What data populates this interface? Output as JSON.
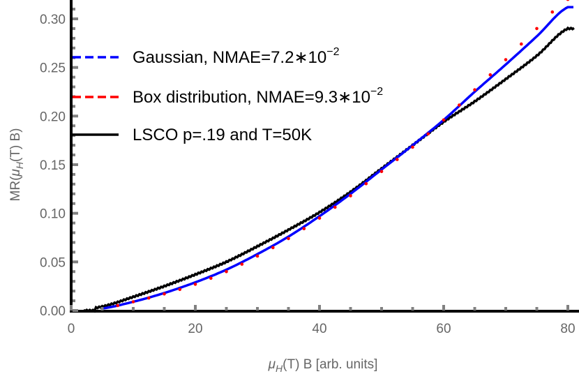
{
  "chart_data": {
    "type": "line",
    "title": "",
    "xlabel": "μH(T) B [arb. units]",
    "ylabel": "MR(μH(T) B)",
    "xlim": [
      0,
      81
    ],
    "ylim": [
      0,
      0.32
    ],
    "xticks": [
      0,
      20,
      40,
      60,
      80
    ],
    "yticks": [
      0.0,
      0.05,
      0.1,
      0.15,
      0.2,
      0.25,
      0.3
    ],
    "xtick_labels": [
      "0",
      "20",
      "40",
      "60",
      "80"
    ],
    "ytick_labels": [
      "0.00",
      "0.05",
      "0.10",
      "0.15",
      "0.20",
      "0.25",
      "0.30"
    ],
    "grid": false,
    "legend_position": "upper left",
    "x": [
      0,
      5,
      10,
      15,
      20,
      25,
      30,
      35,
      40,
      45,
      50,
      55,
      60,
      65,
      70,
      75,
      80
    ],
    "series": [
      {
        "name": "Gaussian, NMAE=7.2*10^-2",
        "style": "dashed",
        "color": "#0000ff",
        "values": [
          0.0,
          0.002,
          0.009,
          0.018,
          0.029,
          0.042,
          0.058,
          0.076,
          0.097,
          0.12,
          0.145,
          0.17,
          0.196,
          0.225,
          0.253,
          0.282,
          0.312
        ]
      },
      {
        "name": "Box distribution, NMAE=9.3*10^-2",
        "style": "dashed",
        "color": "#ff0000",
        "values": [
          0.0,
          0.002,
          0.009,
          0.017,
          0.027,
          0.04,
          0.056,
          0.074,
          0.095,
          0.118,
          0.143,
          0.168,
          0.196,
          0.227,
          0.258,
          0.29,
          0.32
        ]
      },
      {
        "name": "LSCO p=.19 and T=50K",
        "style": "solid",
        "color": "#000000",
        "values": [
          0.0,
          0.004,
          0.014,
          0.025,
          0.037,
          0.05,
          0.066,
          0.083,
          0.101,
          0.122,
          0.146,
          0.17,
          0.194,
          0.215,
          0.238,
          0.262,
          0.29
        ]
      }
    ]
  },
  "legend": {
    "items": [
      {
        "label": "Gaussian, NMAE=7.2∗10",
        "sup": "−2",
        "color": "#0000ff",
        "style": "dashed"
      },
      {
        "label": "Box distribution, NMAE=9.3∗10",
        "sup": "−2",
        "color": "#ff0000",
        "style": "dashed"
      },
      {
        "label": "LSCO p=.19 and T=50K",
        "sup": "",
        "color": "#000000",
        "style": "solid"
      }
    ]
  },
  "axes": {
    "x_title_mu": "μ",
    "x_title_sub": "H",
    "x_title_rest": "(T) B [arb. units]",
    "y_title_pre": "MR(",
    "y_title_mu": "μ",
    "y_title_sub": "H",
    "y_title_rest": "(T) B)"
  }
}
